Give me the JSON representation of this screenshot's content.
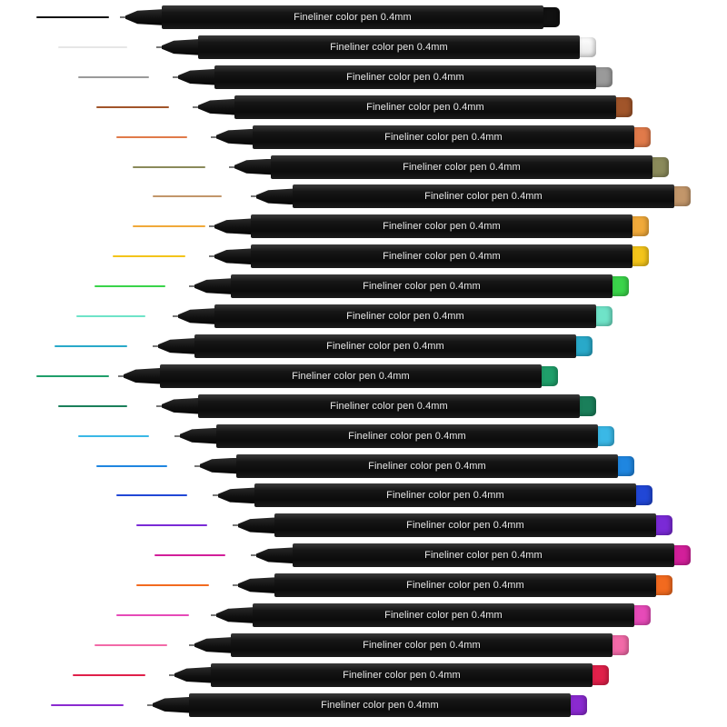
{
  "pen_label": "Fineliner color pen 0.4mm",
  "pens": [
    {
      "label": "Fineliner color pen 0.4mm",
      "color": "#111111"
    },
    {
      "label": "Fineliner color pen 0.4mm",
      "color": "#f2f2f2"
    },
    {
      "label": "Fineliner color pen 0.4mm",
      "color": "#9a9a9a"
    },
    {
      "label": "Fineliner color pen 0.4mm",
      "color": "#a1552a"
    },
    {
      "label": "Fineliner color pen 0.4mm",
      "color": "#e07a4a"
    },
    {
      "label": "Fineliner color pen 0.4mm",
      "color": "#8a8a5a"
    },
    {
      "label": "Fineliner color pen 0.4mm",
      "color": "#c2966a"
    },
    {
      "label": "Fineliner color pen 0.4mm",
      "color": "#f0a93a"
    },
    {
      "label": "Fineliner color pen 0.4mm",
      "color": "#f3c41a"
    },
    {
      "label": "Fineliner color pen 0.4mm",
      "color": "#3ad44a"
    },
    {
      "label": "Fineliner color pen 0.4mm",
      "color": "#6fe3c8"
    },
    {
      "label": "Fineliner color pen 0.4mm",
      "color": "#29a9c9"
    },
    {
      "label": "Fineliner color pen 0.4mm",
      "color": "#1f9f6a"
    },
    {
      "label": "Fineliner color pen 0.4mm",
      "color": "#1a7f5a"
    },
    {
      "label": "Fineliner color pen 0.4mm",
      "color": "#3ab8e6"
    },
    {
      "label": "Fineliner color pen 0.4mm",
      "color": "#1f86e0"
    },
    {
      "label": "Fineliner color pen 0.4mm",
      "color": "#2147d6"
    },
    {
      "label": "Fineliner color pen 0.4mm",
      "color": "#7a2ad6"
    },
    {
      "label": "Fineliner color pen 0.4mm",
      "color": "#d21f9a"
    },
    {
      "label": "Fineliner color pen 0.4mm",
      "color": "#f26a1f"
    },
    {
      "label": "Fineliner color pen 0.4mm",
      "color": "#e64ab8"
    },
    {
      "label": "Fineliner color pen 0.4mm",
      "color": "#f26aa8"
    },
    {
      "label": "Fineliner color pen 0.4mm",
      "color": "#e0204a"
    },
    {
      "label": "Fineliner color pen 0.4mm",
      "color": "#8a2ad0"
    }
  ]
}
